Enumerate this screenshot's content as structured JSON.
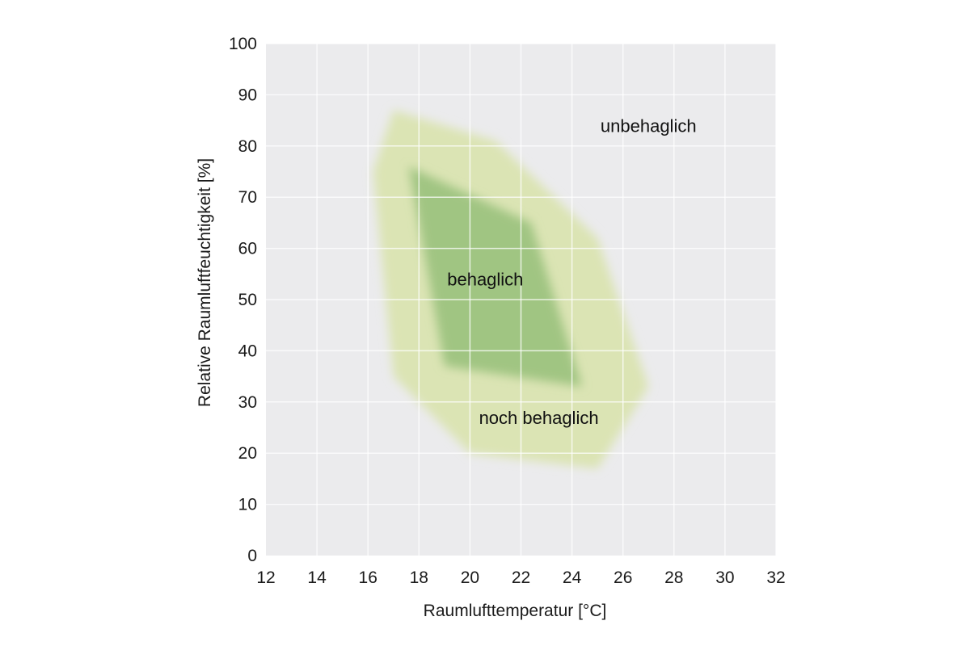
{
  "chart_data": {
    "type": "area",
    "title": "",
    "xlabel": "Raumlufttemperatur [°C]",
    "ylabel": "Relative Raumluftfeuchtigkeit [%]",
    "xlim": [
      12,
      32
    ],
    "ylim": [
      0,
      100
    ],
    "x_ticks": [
      12,
      14,
      16,
      18,
      20,
      22,
      24,
      26,
      28,
      30,
      32
    ],
    "y_ticks": [
      0,
      10,
      20,
      30,
      40,
      50,
      60,
      70,
      80,
      90,
      100
    ],
    "grid": true,
    "background_color": "#ebebed",
    "grid_color": "#ffffff",
    "regions": [
      {
        "name": "noch behaglich",
        "color": "#dbe4b4",
        "polygon": [
          [
            17.0,
            87
          ],
          [
            21.0,
            81
          ],
          [
            25.0,
            62
          ],
          [
            27.0,
            33
          ],
          [
            25.0,
            17
          ],
          [
            20.0,
            20
          ],
          [
            17.0,
            35
          ],
          [
            16.2,
            75
          ]
        ]
      },
      {
        "name": "behaglich",
        "color": "#a0c582",
        "polygon": [
          [
            17.6,
            76
          ],
          [
            22.4,
            65
          ],
          [
            24.4,
            33
          ],
          [
            19.0,
            37
          ]
        ]
      }
    ],
    "annotations": [
      {
        "text": "unbehaglich",
        "x": 27.0,
        "y": 84
      },
      {
        "text": "behaglich",
        "x": 20.6,
        "y": 54
      },
      {
        "text": "noch behaglich",
        "x": 22.7,
        "y": 27
      }
    ]
  }
}
